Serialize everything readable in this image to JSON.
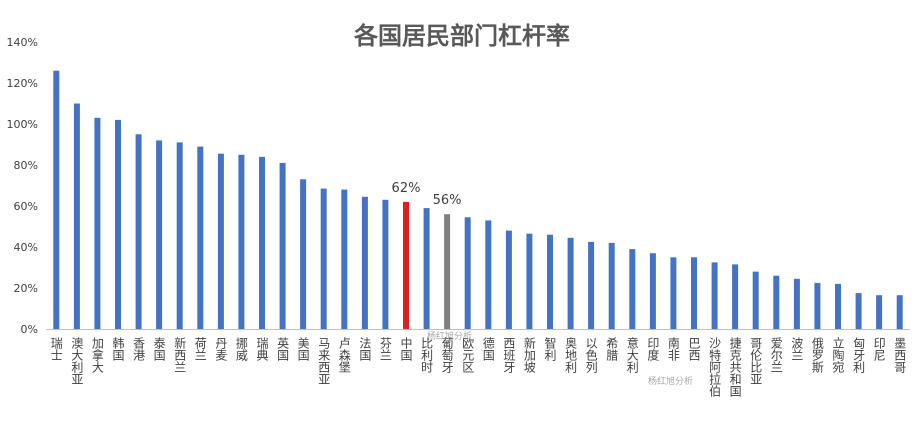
{
  "chart_data": {
    "type": "bar",
    "title": "各国居民部门杠杆率",
    "categories": [
      "瑞士",
      "澳大利亚",
      "加拿大",
      "韩国",
      "香港",
      "泰国",
      "新西兰",
      "荷兰",
      "丹麦",
      "挪威",
      "瑞典",
      "英国",
      "美国",
      "马来西亚",
      "卢森堡",
      "法国",
      "芬兰",
      "中国",
      "比利时",
      "葡萄牙",
      "欧元区",
      "德国",
      "西班牙",
      "新加坡",
      "智利",
      "奥地利",
      "以色列",
      "希腊",
      "意大利",
      "印度",
      "南非",
      "巴西",
      "沙特阿拉伯",
      "捷克共和国",
      "哥伦比亚",
      "爱尔兰",
      "波兰",
      "俄罗斯",
      "立陶宛",
      "匈牙利",
      "印尼",
      "墨西哥"
    ],
    "values": [
      126,
      110,
      103,
      102,
      95,
      92,
      91,
      89,
      85.5,
      85,
      84,
      81,
      73,
      68.5,
      68,
      64.5,
      63,
      62,
      59,
      56,
      54.5,
      53,
      48,
      46.5,
      46,
      44.5,
      42.5,
      42,
      39,
      37,
      35,
      35,
      32.5,
      31.5,
      28,
      26,
      24.5,
      22.5,
      22,
      17.5,
      16.5,
      16.5
    ],
    "ylim": [
      0,
      140
    ],
    "yticks": [
      "0%",
      "20%",
      "40%",
      "60%",
      "80%",
      "100%",
      "120%",
      "140%"
    ],
    "ytick_values": [
      0,
      20,
      40,
      60,
      80,
      100,
      120,
      140
    ],
    "grid": false,
    "data_labels": [
      {
        "category": "中国",
        "text": "62%"
      },
      {
        "category": "葡萄牙",
        "text": "56%"
      }
    ],
    "colors": {
      "default": "#4472c4",
      "highlights": {
        "中国": "#e02020",
        "葡萄牙": "#7f7f7f"
      },
      "axis": "#bfbfbf",
      "title": "#595959",
      "text": "#404040"
    },
    "watermarks": [
      "杨红旭分析",
      "杨红旭分析"
    ]
  }
}
